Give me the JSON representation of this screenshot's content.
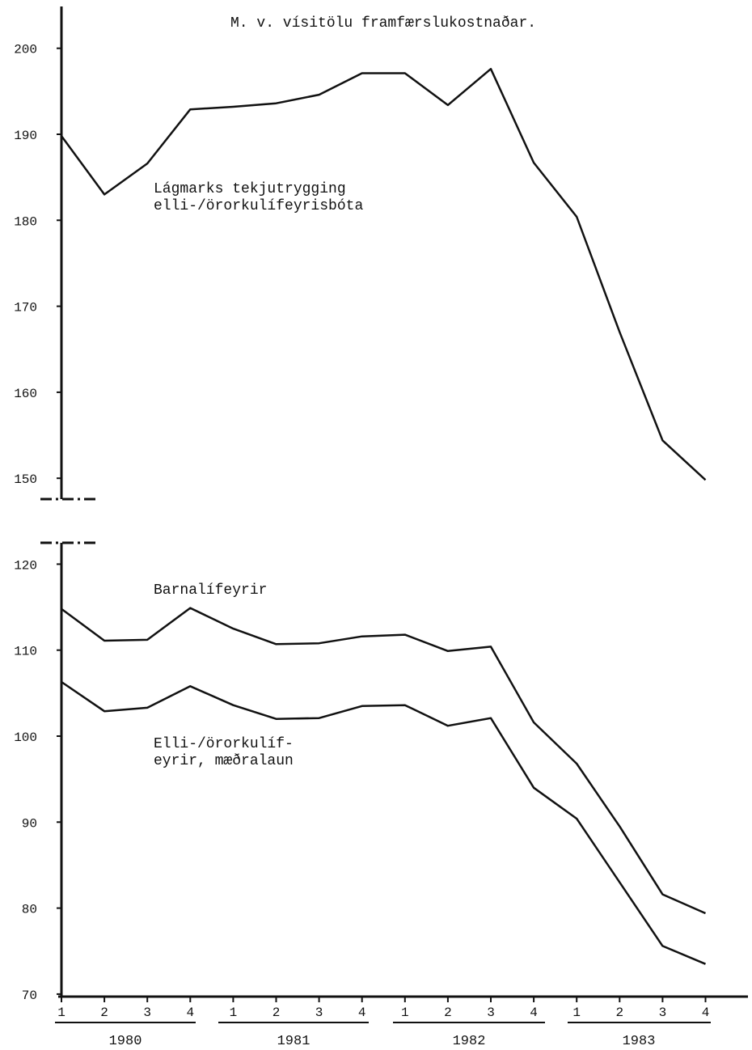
{
  "chart_data": {
    "type": "line",
    "title": "M. v. vísitölu framfærslukostnaðar.",
    "x": [
      "1",
      "2",
      "3",
      "4",
      "1",
      "2",
      "3",
      "4",
      "1",
      "2",
      "3",
      "4",
      "1",
      "2",
      "3",
      "4"
    ],
    "years": [
      "1980",
      "1981",
      "1982",
      "1983"
    ],
    "y_axis_upper": {
      "ticks": [
        "150",
        "160",
        "170",
        "180",
        "190",
        "200"
      ],
      "ylim": [
        147,
        205
      ]
    },
    "y_axis_lower": {
      "ticks": [
        "70",
        "80",
        "90",
        "100",
        "110",
        "120"
      ],
      "ylim": [
        70,
        123
      ]
    },
    "axis_break": true,
    "grid": false,
    "series": [
      {
        "name": "Lágmarks tekjutrygging elli-/örorkulífeyrisbóta",
        "label_lines": [
          "Lágmarks tekjutrygging",
          "elli-/örorkulífeyrisbóta"
        ],
        "panel": "upper",
        "values": [
          189.8,
          183.0,
          186.6,
          192.9,
          193.2,
          193.6,
          194.6,
          197.1,
          197.1,
          193.4,
          197.6,
          186.7,
          180.4,
          167.0,
          154.4,
          149.8
        ]
      },
      {
        "name": "Barnalífeyrir",
        "label_lines": [
          "Barnalífeyrir"
        ],
        "panel": "lower",
        "values": [
          114.8,
          111.1,
          111.2,
          114.9,
          112.5,
          110.7,
          110.8,
          111.6,
          111.8,
          109.9,
          110.4,
          101.6,
          96.8,
          89.5,
          81.6,
          79.4
        ]
      },
      {
        "name": "Elli-/örorkulífeyrir, mæðralaun",
        "label_lines": [
          "Elli-/örorkulíf-",
          "eyrir, mæðralaun"
        ],
        "panel": "lower",
        "values": [
          106.3,
          102.9,
          103.3,
          105.8,
          103.6,
          102.0,
          102.1,
          103.5,
          103.6,
          101.2,
          102.1,
          94.0,
          90.4,
          83.0,
          75.6,
          73.5
        ]
      }
    ]
  }
}
